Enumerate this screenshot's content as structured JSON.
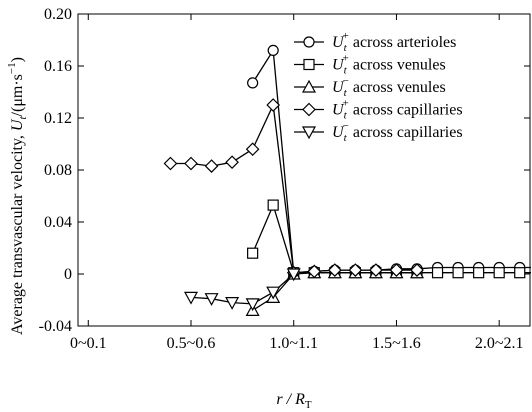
{
  "chart_data": {
    "type": "line",
    "xlabel": "r / R",
    "xlabel_sub": "T",
    "ylabel": "Average transvascular velocity, U",
    "ylabel_sub": "t",
    "ylabel_unit_pre": "/(μm·s",
    "ylabel_unit_sup": "−1",
    "ylabel_unit_post": ")",
    "xlim": [
      0,
      2.2
    ],
    "ylim": [
      -0.04,
      0.2
    ],
    "x_tick_labels": [
      {
        "label": "0~0.1",
        "x": 0.05
      },
      {
        "label": "0.5~0.6",
        "x": 0.55
      },
      {
        "label": "1.0~1.1",
        "x": 1.05
      },
      {
        "label": "1.5~1.6",
        "x": 1.55
      },
      {
        "label": "2.0~2.1",
        "x": 2.05
      }
    ],
    "y_ticks": [
      -0.04,
      0,
      0.04,
      0.08,
      0.12,
      0.16,
      0.2
    ],
    "y_tick_labels": [
      "-0.04",
      "0",
      "0.04",
      "0.08",
      "0.12",
      "0.16",
      "0.20"
    ],
    "legend_position": "top-right",
    "series": [
      {
        "name": "U",
        "sub": "t",
        "sup": "+",
        "suffix": " across arterioles",
        "marker": "circle",
        "x": [
          0.85,
          0.95,
          1.05,
          1.15,
          1.25,
          1.35,
          1.45,
          1.55,
          1.65,
          1.75,
          1.85,
          1.95,
          2.05,
          2.15,
          2.25
        ],
        "y": [
          0.147,
          0.172,
          0.001,
          0.002,
          0.003,
          0.003,
          0.003,
          0.004,
          0.004,
          0.005,
          0.005,
          0.005,
          0.005,
          0.005,
          0.005
        ]
      },
      {
        "name": "U",
        "sub": "t",
        "sup": "+",
        "suffix": " across venules",
        "marker": "square",
        "x": [
          0.85,
          0.95,
          1.05,
          1.15,
          1.25,
          1.35,
          1.45,
          1.55,
          1.65,
          1.75,
          1.85,
          1.95,
          2.05,
          2.15,
          2.25
        ],
        "y": [
          0.016,
          0.053,
          0.001,
          0.001,
          0.001,
          0.001,
          0.001,
          0.001,
          0.001,
          0.001,
          0.001,
          0.001,
          0.001,
          0.001,
          0.001
        ]
      },
      {
        "name": "U",
        "sub": "t",
        "sup": "−",
        "suffix": " across venules",
        "marker": "triangle-up",
        "x": [
          0.85,
          0.95,
          1.05,
          1.15,
          1.25,
          1.35,
          1.45,
          1.55,
          1.65
        ],
        "y": [
          -0.028,
          -0.018,
          0.0,
          0.001,
          0.001,
          0.001,
          0.001,
          0.001,
          0.001
        ]
      },
      {
        "name": "U",
        "sub": "t",
        "sup": "+",
        "suffix": " across capillaries",
        "marker": "diamond",
        "x": [
          0.45,
          0.55,
          0.65,
          0.75,
          0.85,
          0.95,
          1.05,
          1.15,
          1.25,
          1.35,
          1.45,
          1.55,
          1.65
        ],
        "y": [
          0.085,
          0.085,
          0.083,
          0.086,
          0.096,
          0.13,
          0.001,
          0.002,
          0.003,
          0.003,
          0.003,
          0.003,
          0.003
        ]
      },
      {
        "name": "U",
        "sub": "t",
        "sup": "−",
        "suffix": " across capillaries",
        "marker": "triangle-down",
        "x": [
          0.55,
          0.65,
          0.75,
          0.85,
          0.95,
          1.05
        ],
        "y": [
          -0.018,
          -0.019,
          -0.022,
          -0.023,
          -0.014,
          0.0
        ]
      }
    ]
  }
}
